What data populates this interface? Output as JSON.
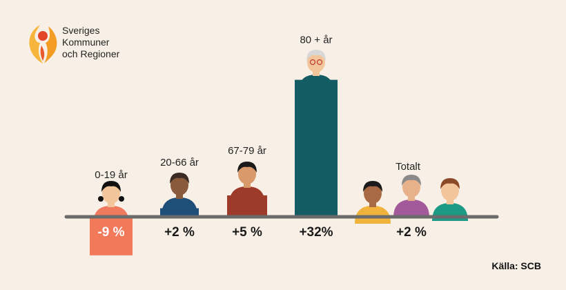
{
  "logo": {
    "org_line1": "Sveriges",
    "org_line2": "Kommuner",
    "org_line3": "och Regioner"
  },
  "source": "Källa: SCB",
  "colors": {
    "background": "#f8f0e6",
    "axis": "#6b6b6b",
    "negative_bar": "#f2795a",
    "emphasis_bar": "#145c64",
    "small_bar_navy": "#1f4e79",
    "small_bar_red": "#9e3a2a"
  },
  "chart_data": {
    "type": "bar",
    "categories": [
      "0-19 år",
      "20-66 år",
      "67-79 år",
      "80 + år",
      "Totalt"
    ],
    "values": [
      -9,
      2,
      5,
      32,
      2
    ],
    "value_labels": [
      "-9 %",
      "+2 %",
      "+5 %",
      "+32%",
      "+2 %"
    ],
    "unit": "%",
    "title": "",
    "xlabel": "",
    "ylabel": "",
    "grid": false,
    "legend": "none"
  }
}
